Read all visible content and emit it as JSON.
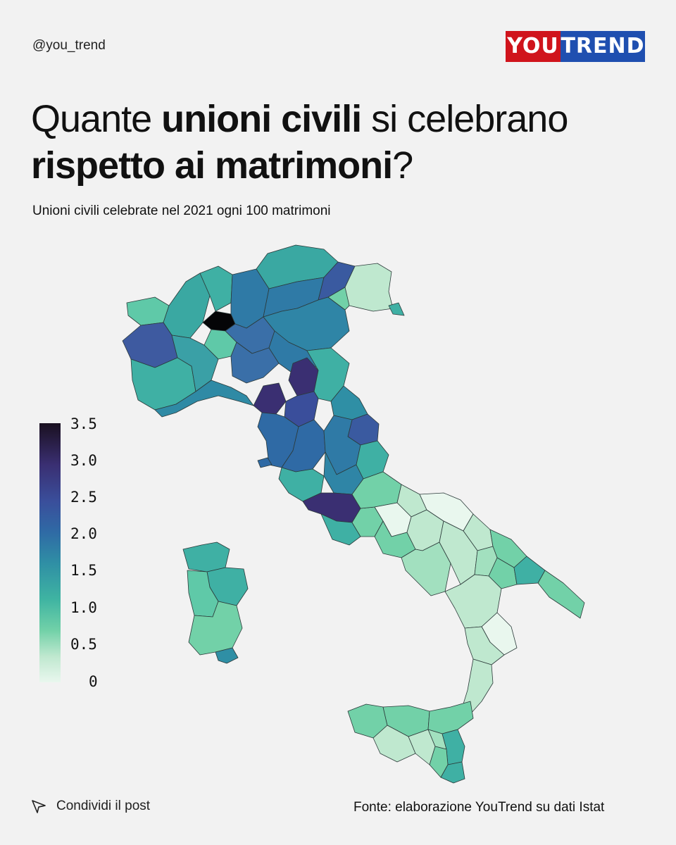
{
  "header": {
    "handle": "@you_trend",
    "logo_you": "YOU",
    "logo_trend": "TREND",
    "logo_colors": {
      "you": "#d0141c",
      "trend": "#1f4fb0"
    }
  },
  "title": {
    "part1": "Quante ",
    "bold1": "unioni civili",
    "part2": " si celebrano ",
    "bold2": "rispetto ai matrimoni",
    "part3": "?"
  },
  "subtitle": "Unioni civili celebrate nel 2021 ogni 100 matrimoni",
  "legend": {
    "ticks": [
      "3.5",
      "3.0",
      "2.5",
      "2.0",
      "1.5",
      "1.0",
      "0.5",
      "0"
    ],
    "min": 0,
    "max": 3.5,
    "colors": [
      "#e9f7ee",
      "#72d1a8",
      "#3fb4a2",
      "#2f8fa5",
      "#2f6aa5",
      "#3a4e9b",
      "#3a2f72",
      "#1a1020"
    ]
  },
  "footer": {
    "share_icon": "send-icon",
    "share_label": "Condividi il post",
    "source": "Fonte: elaborazione YouTrend su dati Istat"
  }
}
